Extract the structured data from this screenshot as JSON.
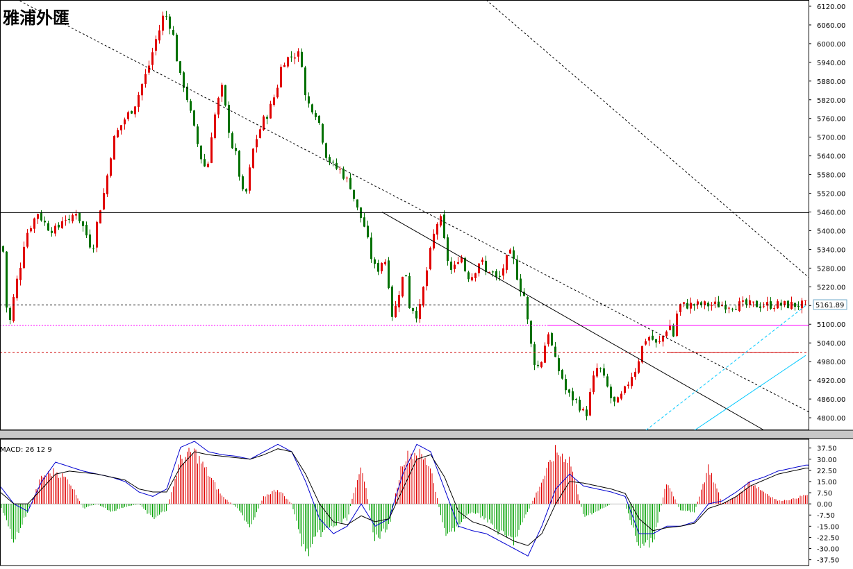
{
  "logo_text": "雅浦外匯",
  "price_label": "5161.89",
  "chart_data": [
    {
      "type": "candlestick",
      "title": "",
      "ylim": [
        4760,
        6140
      ],
      "y_ticks": [
        "6120.00",
        "6060.00",
        "6000.00",
        "5940.00",
        "5880.00",
        "5820.00",
        "5760.00",
        "5700.00",
        "5640.00",
        "5580.00",
        "5520.00",
        "5460.00",
        "5400.00",
        "5340.00",
        "5280.00",
        "5220.00",
        "5160.00",
        "5100.00",
        "5040.00",
        "4980.00",
        "4920.00",
        "4860.00",
        "4800.00"
      ],
      "y_tick_values": [
        6120,
        6060,
        6000,
        5940,
        5880,
        5820,
        5760,
        5700,
        5640,
        5580,
        5520,
        5460,
        5400,
        5340,
        5280,
        5220,
        5160,
        5100,
        5040,
        4980,
        4920,
        4860,
        4800
      ],
      "bar_count": 232,
      "close_anchors": [
        [
          0,
          5350
        ],
        [
          3,
          5390
        ],
        [
          8,
          5200
        ],
        [
          12,
          5080
        ],
        [
          16,
          5130
        ],
        [
          22,
          5220
        ],
        [
          28,
          5270
        ],
        [
          36,
          5380
        ],
        [
          45,
          5420
        ],
        [
          55,
          5460
        ],
        [
          62,
          5430
        ],
        [
          70,
          5410
        ],
        [
          82,
          5400
        ],
        [
          92,
          5450
        ],
        [
          100,
          5420
        ],
        [
          108,
          5470
        ],
        [
          118,
          5420
        ],
        [
          124,
          5390
        ],
        [
          128,
          5360
        ],
        [
          134,
          5350
        ],
        [
          140,
          5430
        ],
        [
          143,
          5460
        ],
        [
          147,
          5500
        ],
        [
          152,
          5540
        ],
        [
          158,
          5630
        ],
        [
          165,
          5700
        ],
        [
          172,
          5730
        ],
        [
          180,
          5760
        ],
        [
          190,
          5790
        ],
        [
          195,
          5810
        ],
        [
          200,
          5840
        ],
        [
          206,
          5880
        ],
        [
          212,
          5910
        ],
        [
          218,
          5960
        ],
        [
          224,
          6010
        ],
        [
          232,
          6060
        ],
        [
          236,
          6100
        ],
        [
          242,
          6080
        ],
        [
          250,
          6020
        ],
        [
          258,
          5900
        ],
        [
          266,
          5860
        ],
        [
          274,
          5780
        ],
        [
          282,
          5700
        ],
        [
          290,
          5630
        ],
        [
          298,
          5590
        ],
        [
          305,
          5720
        ],
        [
          312,
          5800
        ],
        [
          320,
          5860
        ],
        [
          326,
          5770
        ],
        [
          333,
          5680
        ],
        [
          340,
          5640
        ],
        [
          346,
          5560
        ],
        [
          352,
          5490
        ],
        [
          360,
          5600
        ],
        [
          366,
          5680
        ],
        [
          372,
          5710
        ],
        [
          378,
          5750
        ],
        [
          384,
          5770
        ],
        [
          392,
          5810
        ],
        [
          400,
          5870
        ],
        [
          406,
          5940
        ],
        [
          412,
          5950
        ],
        [
          420,
          5960
        ],
        [
          428,
          5970
        ],
        [
          434,
          5950
        ],
        [
          440,
          5820
        ],
        [
          446,
          5800
        ],
        [
          452,
          5790
        ],
        [
          458,
          5760
        ],
        [
          464,
          5700
        ],
        [
          470,
          5640
        ],
        [
          476,
          5620
        ],
        [
          482,
          5600
        ],
        [
          488,
          5600
        ],
        [
          494,
          5580
        ],
        [
          500,
          5560
        ],
        [
          506,
          5540
        ],
        [
          512,
          5480
        ],
        [
          518,
          5450
        ],
        [
          524,
          5420
        ],
        [
          530,
          5360
        ],
        [
          536,
          5300
        ],
        [
          542,
          5270
        ],
        [
          548,
          5290
        ],
        [
          552,
          5320
        ],
        [
          558,
          5280
        ],
        [
          562,
          5150
        ],
        [
          566,
          5120
        ],
        [
          572,
          5180
        ],
        [
          578,
          5240
        ],
        [
          584,
          5270
        ],
        [
          590,
          5150
        ],
        [
          596,
          5150
        ],
        [
          602,
          5120
        ],
        [
          610,
          5220
        ],
        [
          616,
          5290
        ],
        [
          622,
          5360
        ],
        [
          628,
          5420
        ],
        [
          634,
          5440
        ],
        [
          640,
          5360
        ],
        [
          646,
          5290
        ],
        [
          652,
          5260
        ],
        [
          658,
          5310
        ],
        [
          664,
          5320
        ],
        [
          670,
          5270
        ],
        [
          676,
          5250
        ],
        [
          682,
          5260
        ],
        [
          688,
          5300
        ],
        [
          694,
          5300
        ],
        [
          700,
          5260
        ],
        [
          706,
          5280
        ],
        [
          712,
          5250
        ],
        [
          718,
          5240
        ],
        [
          724,
          5280
        ],
        [
          730,
          5310
        ],
        [
          736,
          5330
        ],
        [
          742,
          5280
        ],
        [
          748,
          5220
        ],
        [
          754,
          5200
        ],
        [
          760,
          5100
        ],
        [
          766,
          5010
        ],
        [
          772,
          4960
        ],
        [
          778,
          4970
        ],
        [
          784,
          5030
        ],
        [
          790,
          5080
        ],
        [
          796,
          5010
        ],
        [
          802,
          4960
        ],
        [
          808,
          4940
        ],
        [
          814,
          4890
        ],
        [
          820,
          4870
        ],
        [
          826,
          4860
        ],
        [
          832,
          4850
        ],
        [
          838,
          4820
        ],
        [
          844,
          4810
        ],
        [
          850,
          4880
        ],
        [
          856,
          4940
        ],
        [
          862,
          4970
        ],
        [
          868,
          4930
        ],
        [
          874,
          4900
        ],
        [
          880,
          4860
        ],
        [
          886,
          4840
        ],
        [
          892,
          4860
        ],
        [
          898,
          4880
        ],
        [
          904,
          4910
        ],
        [
          910,
          4940
        ],
        [
          916,
          4960
        ],
        [
          922,
          5010
        ],
        [
          928,
          5050
        ],
        [
          934,
          5060
        ],
        [
          940,
          5050
        ],
        [
          946,
          5030
        ],
        [
          952,
          5050
        ],
        [
          958,
          5080
        ],
        [
          964,
          5100
        ],
        [
          970,
          5060
        ],
        [
          976,
          5160
        ],
        [
          1000,
          5162
        ]
      ],
      "lines": [
        {
          "name": "",
          "points": [
            [
              -30,
              6205
            ],
            [
              1215,
              4760
            ]
          ],
          "style": "dashed"
        },
        {
          "name": "",
          "points": [
            [
              550,
              5460
            ],
            [
              1100,
              4760
            ]
          ],
          "style": "solid"
        },
        {
          "name": "",
          "points": [
            [
              700,
              6140
            ],
            [
              1420,
              4760
            ]
          ],
          "style": "dashed"
        }
      ],
      "resistance_line": 5458,
      "dashed_price_line": 5161.89,
      "magenta_line": 5096,
      "red_dashed_line": 5010,
      "channel": {
        "lower_start": [
          1000,
          4760
        ],
        "lower_end": [
          1160,
          5000
        ],
        "upper_start": [
          930,
          4760
        ],
        "upper_end": [
          1160,
          5160
        ]
      }
    },
    {
      "type": "macd",
      "title": "MACD: 26 12 9",
      "ylim": [
        -40,
        42
      ],
      "y_ticks": [
        "37.50",
        "30.00",
        "22.50",
        "15.00",
        "7.50",
        "0.00",
        "-7.50",
        "-15.00",
        "-22.50",
        "-30.00",
        "-37.50"
      ],
      "y_tick_values": [
        37.5,
        30,
        22.5,
        15,
        7.5,
        0,
        -7.5,
        -15,
        -22.5,
        -30,
        -37.5
      ],
      "hist_anchors": [
        [
          0,
          0
        ],
        [
          20,
          -25
        ],
        [
          40,
          -5
        ],
        [
          60,
          18
        ],
        [
          80,
          22
        ],
        [
          100,
          15
        ],
        [
          120,
          -3
        ],
        [
          140,
          0
        ],
        [
          160,
          -5
        ],
        [
          180,
          -2
        ],
        [
          200,
          0
        ],
        [
          220,
          -10
        ],
        [
          240,
          -4
        ],
        [
          260,
          30
        ],
        [
          280,
          35
        ],
        [
          300,
          20
        ],
        [
          320,
          5
        ],
        [
          340,
          -2
        ],
        [
          360,
          -15
        ],
        [
          380,
          5
        ],
        [
          400,
          10
        ],
        [
          420,
          0
        ],
        [
          440,
          -35
        ],
        [
          460,
          -20
        ],
        [
          480,
          -15
        ],
        [
          500,
          -10
        ],
        [
          520,
          28
        ],
        [
          540,
          -25
        ],
        [
          560,
          -15
        ],
        [
          580,
          30
        ],
        [
          600,
          35
        ],
        [
          620,
          25
        ],
        [
          640,
          -20
        ],
        [
          660,
          -15
        ],
        [
          680,
          -5
        ],
        [
          700,
          -10
        ],
        [
          720,
          -20
        ],
        [
          740,
          -25
        ],
        [
          760,
          -5
        ],
        [
          780,
          15
        ],
        [
          800,
          35
        ],
        [
          820,
          30
        ],
        [
          840,
          -8
        ],
        [
          860,
          -5
        ],
        [
          880,
          0
        ],
        [
          900,
          0
        ],
        [
          920,
          -30
        ],
        [
          940,
          -25
        ],
        [
          960,
          15
        ],
        [
          980,
          -5
        ],
        [
          1000,
          -5
        ],
        [
          1020,
          25
        ],
        [
          1040,
          0
        ],
        [
          1060,
          5
        ],
        [
          1080,
          15
        ],
        [
          1100,
          8
        ],
        [
          1120,
          2
        ],
        [
          1140,
          3
        ],
        [
          1160,
          6
        ]
      ],
      "macd_anchors": [
        [
          0,
          12
        ],
        [
          20,
          0
        ],
        [
          40,
          -5
        ],
        [
          60,
          15
        ],
        [
          80,
          28
        ],
        [
          100,
          25
        ],
        [
          120,
          22
        ],
        [
          140,
          20
        ],
        [
          160,
          18
        ],
        [
          180,
          15
        ],
        [
          200,
          8
        ],
        [
          220,
          5
        ],
        [
          240,
          10
        ],
        [
          260,
          38
        ],
        [
          280,
          42
        ],
        [
          300,
          35
        ],
        [
          320,
          33
        ],
        [
          340,
          32
        ],
        [
          360,
          30
        ],
        [
          380,
          35
        ],
        [
          400,
          40
        ],
        [
          420,
          35
        ],
        [
          440,
          15
        ],
        [
          460,
          -10
        ],
        [
          480,
          -20
        ],
        [
          500,
          -15
        ],
        [
          520,
          0
        ],
        [
          540,
          -15
        ],
        [
          560,
          -10
        ],
        [
          580,
          20
        ],
        [
          600,
          40
        ],
        [
          620,
          35
        ],
        [
          640,
          10
        ],
        [
          660,
          -15
        ],
        [
          680,
          -18
        ],
        [
          700,
          -20
        ],
        [
          720,
          -25
        ],
        [
          740,
          -30
        ],
        [
          760,
          -35
        ],
        [
          780,
          -15
        ],
        [
          800,
          10
        ],
        [
          820,
          20
        ],
        [
          840,
          12
        ],
        [
          860,
          10
        ],
        [
          880,
          8
        ],
        [
          900,
          5
        ],
        [
          920,
          -20
        ],
        [
          940,
          -20
        ],
        [
          960,
          -15
        ],
        [
          980,
          -15
        ],
        [
          1000,
          -12
        ],
        [
          1020,
          0
        ],
        [
          1040,
          2
        ],
        [
          1060,
          8
        ],
        [
          1080,
          15
        ],
        [
          1100,
          18
        ],
        [
          1120,
          22
        ],
        [
          1140,
          24
        ],
        [
          1160,
          26
        ]
      ],
      "signal_anchors": [
        [
          0,
          8
        ],
        [
          20,
          0
        ],
        [
          40,
          0
        ],
        [
          60,
          10
        ],
        [
          80,
          20
        ],
        [
          100,
          22
        ],
        [
          120,
          21
        ],
        [
          140,
          20
        ],
        [
          160,
          18
        ],
        [
          180,
          16
        ],
        [
          200,
          10
        ],
        [
          220,
          8
        ],
        [
          240,
          8
        ],
        [
          260,
          25
        ],
        [
          280,
          35
        ],
        [
          300,
          33
        ],
        [
          320,
          32
        ],
        [
          340,
          31
        ],
        [
          360,
          30
        ],
        [
          380,
          33
        ],
        [
          400,
          37
        ],
        [
          420,
          35
        ],
        [
          440,
          20
        ],
        [
          460,
          0
        ],
        [
          480,
          -12
        ],
        [
          500,
          -14
        ],
        [
          520,
          -8
        ],
        [
          540,
          -12
        ],
        [
          560,
          -10
        ],
        [
          580,
          10
        ],
        [
          600,
          30
        ],
        [
          620,
          33
        ],
        [
          640,
          18
        ],
        [
          660,
          -5
        ],
        [
          680,
          -12
        ],
        [
          700,
          -15
        ],
        [
          720,
          -20
        ],
        [
          740,
          -25
        ],
        [
          760,
          -28
        ],
        [
          780,
          -20
        ],
        [
          800,
          0
        ],
        [
          820,
          15
        ],
        [
          840,
          14
        ],
        [
          860,
          12
        ],
        [
          880,
          10
        ],
        [
          900,
          7
        ],
        [
          920,
          -10
        ],
        [
          940,
          -18
        ],
        [
          960,
          -16
        ],
        [
          980,
          -15
        ],
        [
          1000,
          -13
        ],
        [
          1020,
          -3
        ],
        [
          1040,
          0
        ],
        [
          1060,
          5
        ],
        [
          1080,
          12
        ],
        [
          1100,
          16
        ],
        [
          1120,
          20
        ],
        [
          1140,
          22
        ],
        [
          1160,
          24
        ]
      ]
    }
  ],
  "colors": {
    "bull": "#e00000",
    "bear": "#007000",
    "macd_line": "#0000d0",
    "signal_line": "#000000",
    "hist_pos": "#e00000",
    "hist_neg": "#00a000",
    "magenta": "#ff00ff",
    "red_dashed": "#d00000",
    "channel": "#00c8ff"
  }
}
